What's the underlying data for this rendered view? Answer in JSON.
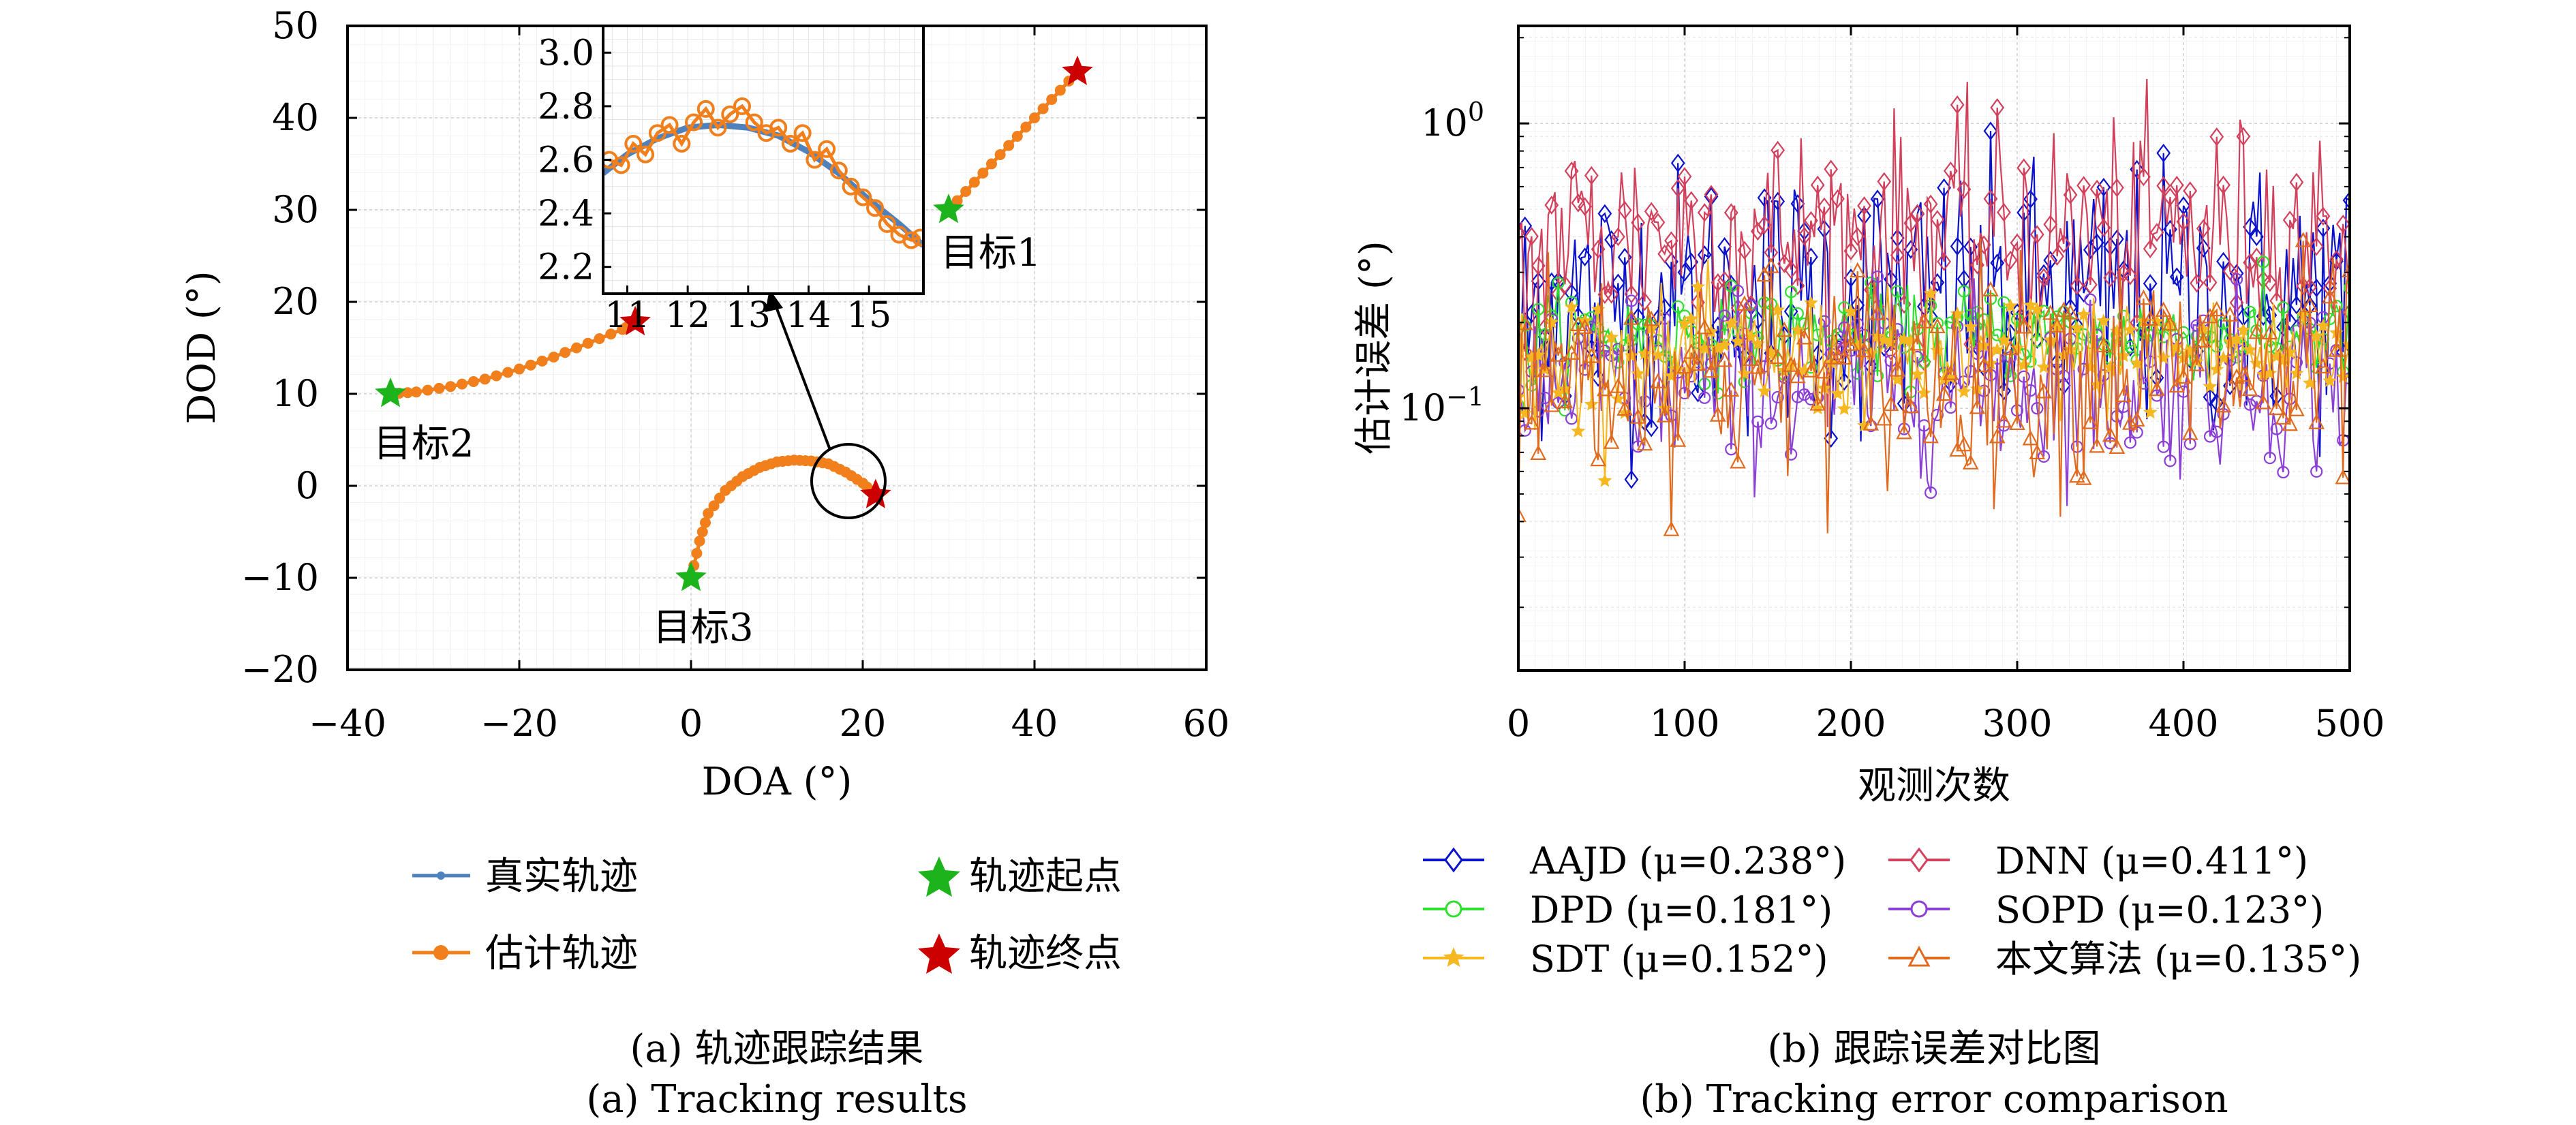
{
  "chart_data": [
    {
      "type": "scatter",
      "xlabel": "DOA (°)",
      "ylabel": "DOD (°)",
      "xlim": [
        -40,
        60
      ],
      "ylim": [
        -20,
        50
      ],
      "xticks": [
        -40,
        -20,
        0,
        20,
        40,
        60
      ],
      "yticks": [
        -20,
        -10,
        0,
        10,
        20,
        30,
        40,
        50
      ],
      "xtick_labels": [
        "−40",
        "−20",
        "0",
        "20",
        "40",
        "60"
      ],
      "ytick_labels": [
        "−20",
        "−10",
        "0",
        "10",
        "20",
        "30",
        "40",
        "50"
      ],
      "grid": true,
      "series": [
        {
          "name": "真实轨迹",
          "color": "#4f81bd",
          "tracks": [
            {
              "x": [
                30,
                33,
                36,
                39,
                42,
                45
              ],
              "y": [
                30,
                33,
                36,
                39,
                42,
                45
              ]
            },
            {
              "x": [
                -35,
                -32,
                -28,
                -24,
                -20,
                -16,
                -12,
                -8,
                -6.5
              ],
              "y": [
                10,
                10.2,
                10.8,
                11.6,
                12.7,
                14,
                15.5,
                17,
                17.8
              ]
            },
            {
              "x": [
                0,
                1,
                2,
                4,
                6,
                8,
                10,
                12,
                14,
                16,
                18,
                20,
                21.5
              ],
              "y": [
                -10,
                -6,
                -3,
                -0.5,
                1,
                2,
                2.6,
                2.8,
                2.7,
                2.4,
                1.5,
                0.3,
                -1
              ]
            }
          ]
        },
        {
          "name": "估计轨迹",
          "color": "#f07f1c",
          "tracks": [
            {
              "x": [
                30,
                33,
                36,
                39,
                42,
                45
              ],
              "y": [
                30,
                33,
                36,
                39,
                42,
                45
              ]
            },
            {
              "x": [
                -35,
                -32,
                -28,
                -24,
                -20,
                -16,
                -12,
                -8,
                -6.5
              ],
              "y": [
                10,
                10.2,
                10.8,
                11.6,
                12.7,
                14,
                15.5,
                17,
                17.8
              ]
            },
            {
              "x": [
                0,
                1,
                2,
                4,
                6,
                8,
                10,
                12,
                14,
                16,
                18,
                20,
                21.5
              ],
              "y": [
                -10,
                -6,
                -3,
                -0.5,
                1,
                2,
                2.6,
                2.8,
                2.7,
                2.4,
                1.5,
                0.3,
                -1
              ]
            }
          ]
        },
        {
          "name": "轨迹起点",
          "color": "#1db31d",
          "x": [
            30,
            -35,
            0
          ],
          "y": [
            30,
            10,
            -10
          ]
        },
        {
          "name": "轨迹终点",
          "color": "#cc0000",
          "x": [
            45,
            -6.5,
            21.5
          ],
          "y": [
            45,
            17.8,
            -1
          ]
        }
      ],
      "annotations": [
        "目标1",
        "目标2",
        "目标3"
      ],
      "inset": {
        "xlim": [
          10.6,
          15.9
        ],
        "ylim": [
          2.1,
          3.1
        ],
        "xticks": [
          11,
          12,
          13,
          14,
          15
        ],
        "yticks": [
          2.2,
          2.4,
          2.6,
          2.8,
          3.0
        ],
        "ytick_labels": [
          "2.2",
          "2.4",
          "2.6",
          "2.8",
          "3.0"
        ],
        "true_x": [
          10.6,
          11,
          11.5,
          12,
          12.5,
          13,
          13.5,
          14,
          14.5,
          15,
          15.5,
          15.9
        ],
        "true_y": [
          2.55,
          2.62,
          2.68,
          2.72,
          2.73,
          2.72,
          2.69,
          2.63,
          2.55,
          2.45,
          2.36,
          2.28
        ],
        "est_x": [
          10.7,
          10.9,
          11.1,
          11.3,
          11.5,
          11.7,
          11.9,
          12.1,
          12.3,
          12.5,
          12.7,
          12.9,
          13.1,
          13.3,
          13.5,
          13.7,
          13.9,
          14.1,
          14.3,
          14.5,
          14.7,
          14.9,
          15.1,
          15.3,
          15.5,
          15.7,
          15.85
        ],
        "est_y": [
          2.6,
          2.58,
          2.66,
          2.62,
          2.7,
          2.73,
          2.66,
          2.74,
          2.79,
          2.72,
          2.77,
          2.8,
          2.74,
          2.7,
          2.72,
          2.66,
          2.7,
          2.6,
          2.64,
          2.56,
          2.5,
          2.46,
          2.42,
          2.36,
          2.32,
          2.3,
          2.31
        ]
      }
    },
    {
      "type": "line",
      "xlabel": "观测次数",
      "ylabel": "估计误差 (°)",
      "xlim": [
        0,
        500
      ],
      "ylim": [
        0.012,
        2.2
      ],
      "yscale": "log",
      "xticks": [
        0,
        100,
        200,
        300,
        400,
        500
      ],
      "ytick_labels": [
        "10^0",
        "10^-1"
      ],
      "grid": true,
      "legend_position": "bottom",
      "series": [
        {
          "name": "AAJD",
          "mu_label": "(μ=0.238°)",
          "color": "#0a12cc",
          "marker": "diamond",
          "mean": 0.238
        },
        {
          "name": "DNN",
          "mu_label": "(μ=0.411°)",
          "color": "#d2405c",
          "marker": "diamond",
          "mean": 0.411
        },
        {
          "name": "DPD",
          "mu_label": "(μ=0.181°)",
          "color": "#2ee02e",
          "marker": "circle",
          "mean": 0.181
        },
        {
          "name": "SOPD",
          "mu_label": "(μ=0.123°)",
          "color": "#8c3fd6",
          "marker": "circle",
          "mean": 0.123
        },
        {
          "name": "SDT",
          "mu_label": "(μ=0.152°)",
          "color": "#f5b820",
          "marker": "star",
          "mean": 0.152
        },
        {
          "name": "本文算法",
          "mu_label": "(μ=0.135°)",
          "color": "#e06a1e",
          "marker": "triangle",
          "mean": 0.135
        }
      ]
    }
  ],
  "captions": {
    "a_cn": "(a) 轨迹跟踪结果",
    "a_en": "(a) Tracking results",
    "b_cn": "(b) 跟踪误差对比图",
    "b_en": "(b) Tracking error comparison"
  }
}
